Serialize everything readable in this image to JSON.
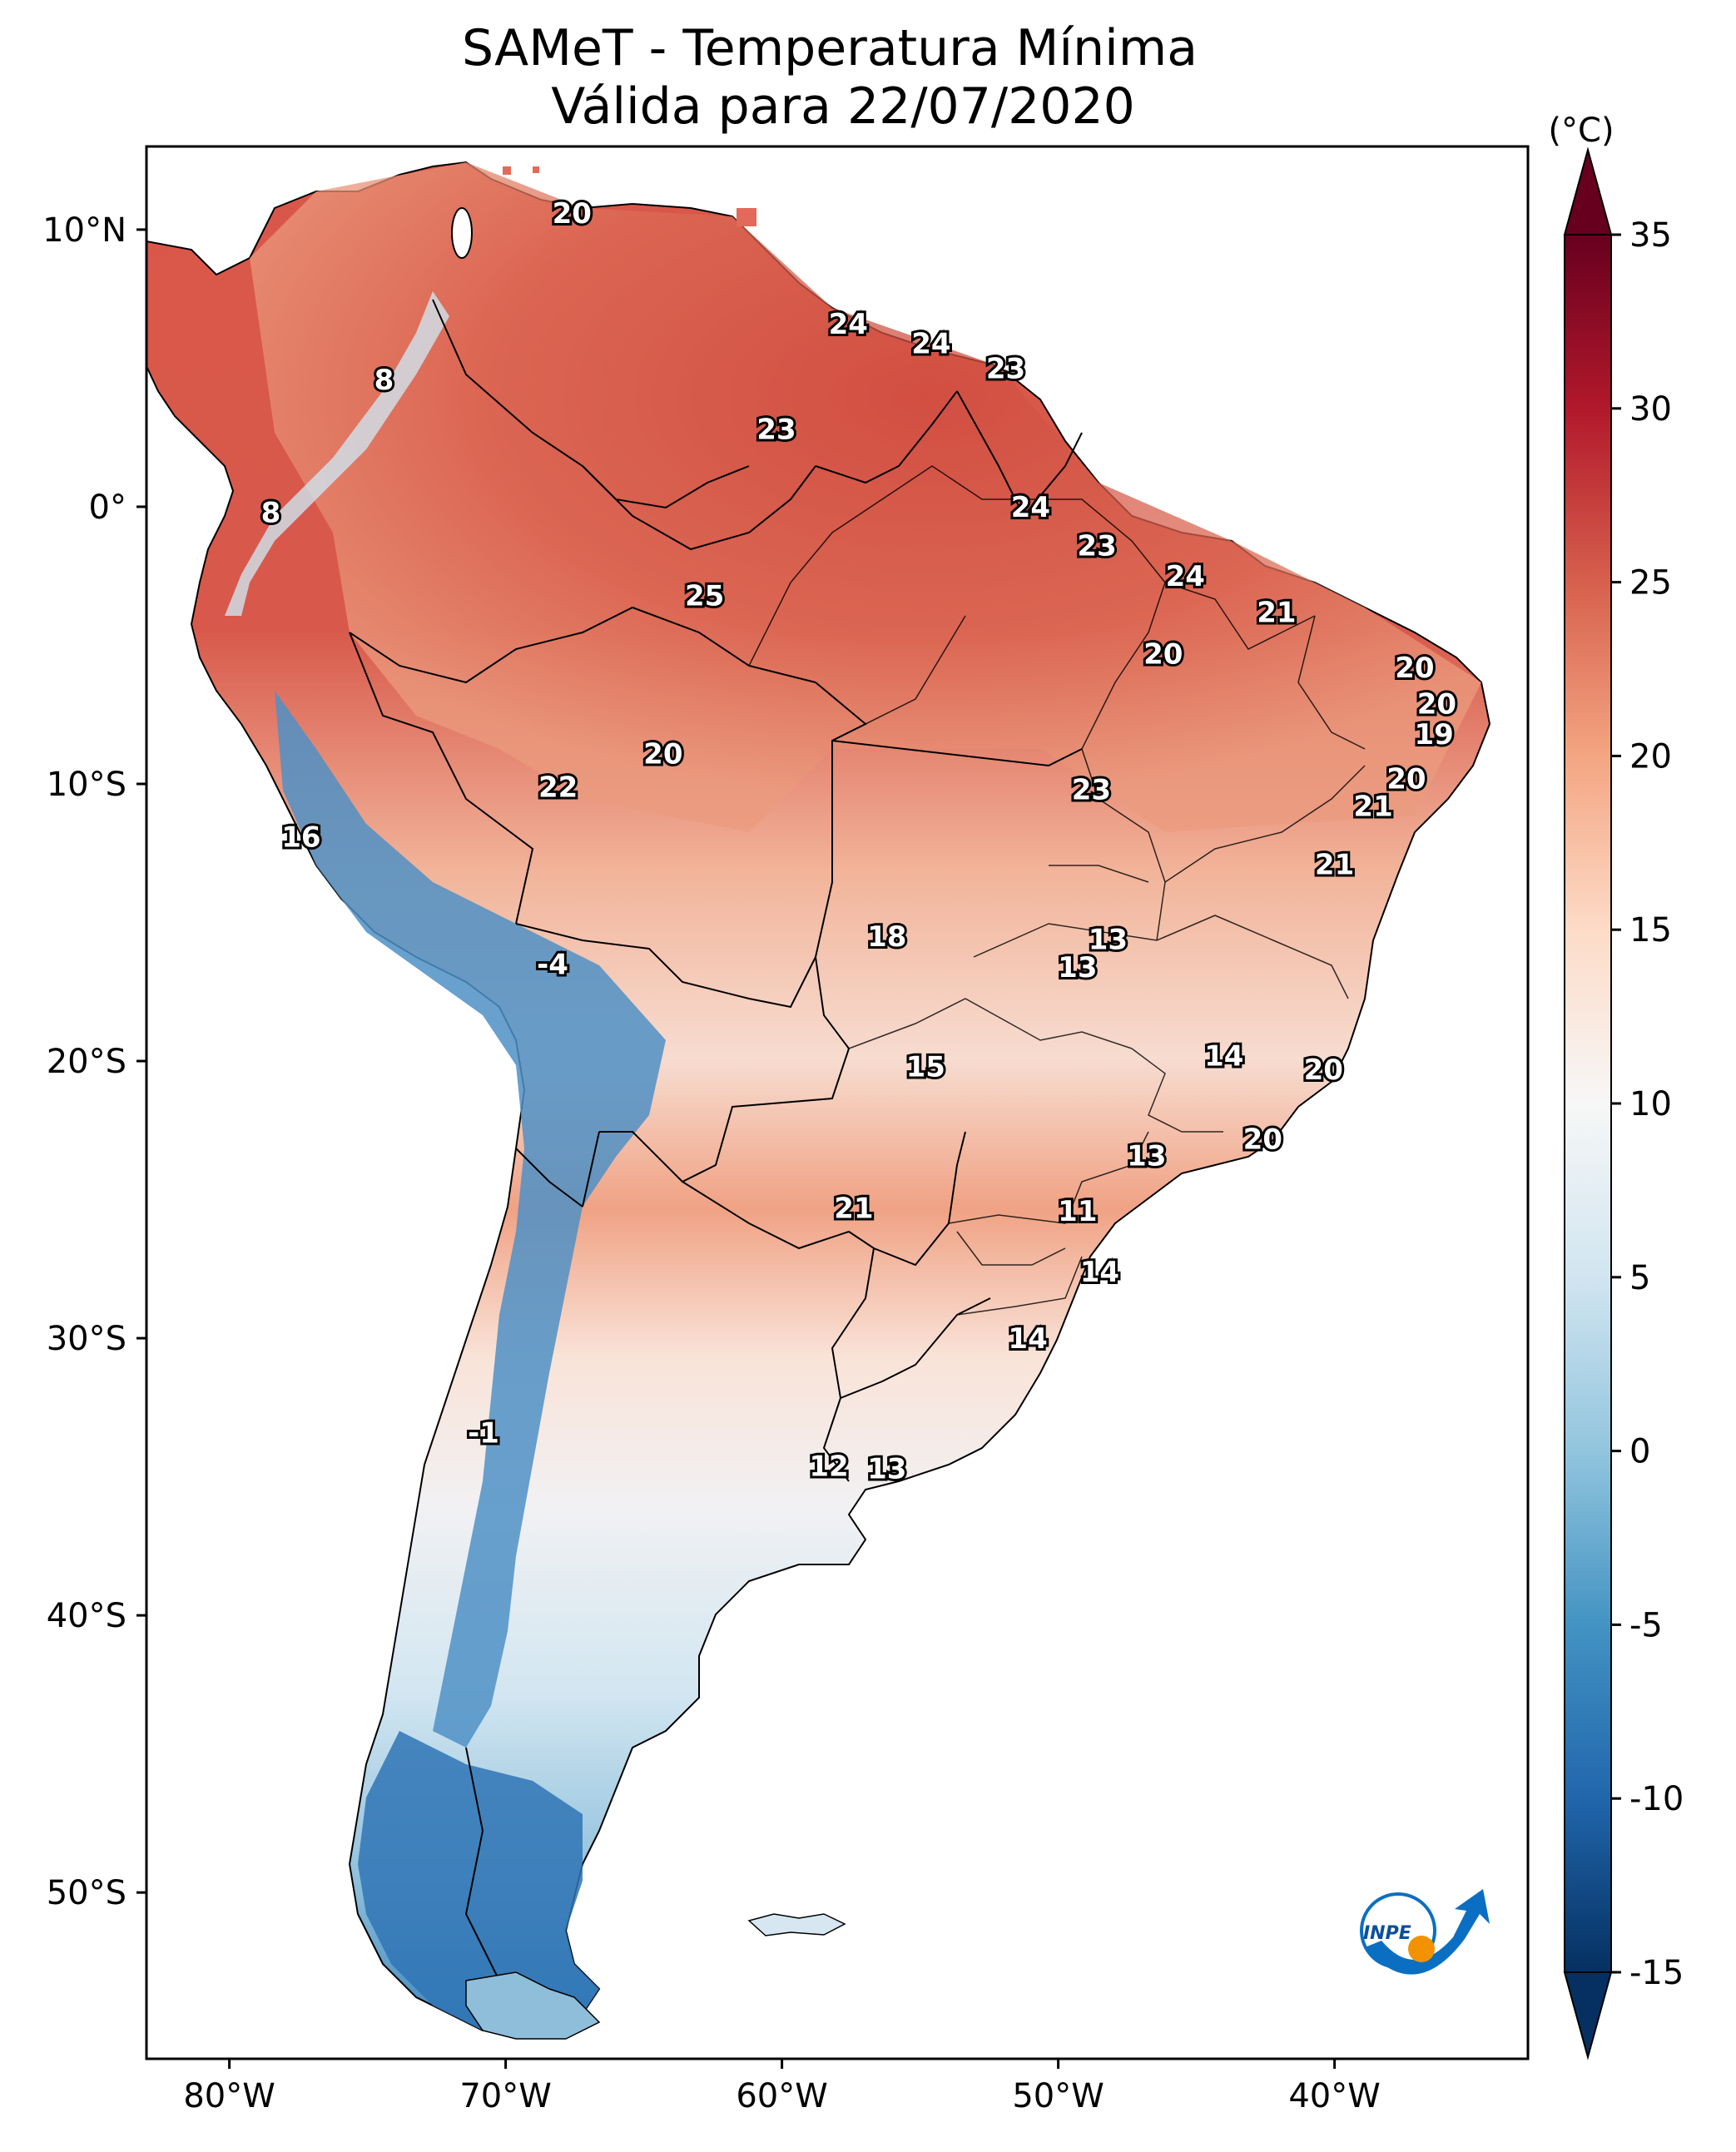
{
  "title_line1": "SAMeT - Temperatura Mínima",
  "title_line2": "Válida para 22/07/2020",
  "colorbar": {
    "unit_label": "(°C)",
    "min": -15,
    "max": 35,
    "ticks": [
      "35",
      "30",
      "25",
      "20",
      "15",
      "10",
      "5",
      "0",
      "-5",
      "-10",
      "-15"
    ],
    "tick_values": [
      35,
      30,
      25,
      20,
      15,
      10,
      5,
      0,
      -5,
      -10,
      -15
    ]
  },
  "axes": {
    "lat_labels": [
      "10°N",
      "0°",
      "10°S",
      "20°S",
      "30°S",
      "40°S",
      "50°S"
    ],
    "lat_values": [
      10,
      0,
      -10,
      -20,
      -30,
      -40,
      -50
    ],
    "lon_labels": [
      "80°W",
      "70°W",
      "60°W",
      "50°W",
      "40°W"
    ],
    "lon_values": [
      -80,
      -70,
      -60,
      -50,
      -40
    ],
    "lon_range": [
      -83,
      -33
    ],
    "lat_range": [
      -56,
      13
    ]
  },
  "station_labels": [
    {
      "text": "20",
      "lon": -67.6,
      "lat": 10.6
    },
    {
      "text": "8",
      "lon": -74.4,
      "lat": 4.6
    },
    {
      "text": "8",
      "lon": -78.5,
      "lat": -0.2
    },
    {
      "text": "24",
      "lon": -57.6,
      "lat": 6.6
    },
    {
      "text": "24",
      "lon": -54.6,
      "lat": 5.9
    },
    {
      "text": "23",
      "lon": -51.9,
      "lat": 5.0
    },
    {
      "text": "23",
      "lon": -60.2,
      "lat": 2.8
    },
    {
      "text": "24",
      "lon": -51.0,
      "lat": 0.0
    },
    {
      "text": "23",
      "lon": -48.6,
      "lat": -1.4
    },
    {
      "text": "24",
      "lon": -45.4,
      "lat": -2.5
    },
    {
      "text": "25",
      "lon": -62.8,
      "lat": -3.2
    },
    {
      "text": "21",
      "lon": -42.1,
      "lat": -3.8
    },
    {
      "text": "20",
      "lon": -46.2,
      "lat": -5.3
    },
    {
      "text": "20",
      "lon": -37.1,
      "lat": -5.8
    },
    {
      "text": "20",
      "lon": -36.3,
      "lat": -7.1
    },
    {
      "text": "19",
      "lon": -36.4,
      "lat": -8.2
    },
    {
      "text": "20",
      "lon": -64.3,
      "lat": -8.9
    },
    {
      "text": "20",
      "lon": -37.4,
      "lat": -9.8
    },
    {
      "text": "22",
      "lon": -68.1,
      "lat": -10.1
    },
    {
      "text": "23",
      "lon": -48.8,
      "lat": -10.2
    },
    {
      "text": "21",
      "lon": -38.6,
      "lat": -10.8
    },
    {
      "text": "16",
      "lon": -77.4,
      "lat": -11.9
    },
    {
      "text": "21",
      "lon": -40.0,
      "lat": -12.9
    },
    {
      "text": "18",
      "lon": -56.2,
      "lat": -15.5
    },
    {
      "text": "13",
      "lon": -48.2,
      "lat": -15.6
    },
    {
      "text": "13",
      "lon": -49.3,
      "lat": -16.6
    },
    {
      "text": "-4",
      "lon": -68.3,
      "lat": -16.5
    },
    {
      "text": "14",
      "lon": -44.0,
      "lat": -19.8
    },
    {
      "text": "15",
      "lon": -54.8,
      "lat": -20.2
    },
    {
      "text": "20",
      "lon": -40.4,
      "lat": -20.3
    },
    {
      "text": "20",
      "lon": -42.6,
      "lat": -22.8
    },
    {
      "text": "13",
      "lon": -46.8,
      "lat": -23.4
    },
    {
      "text": "21",
      "lon": -57.4,
      "lat": -25.3
    },
    {
      "text": "11",
      "lon": -49.3,
      "lat": -25.4
    },
    {
      "text": "14",
      "lon": -48.5,
      "lat": -27.6
    },
    {
      "text": "14",
      "lon": -51.1,
      "lat": -30.0
    },
    {
      "text": "-1",
      "lon": -70.8,
      "lat": -33.4
    },
    {
      "text": "12",
      "lon": -58.3,
      "lat": -34.6
    },
    {
      "text": "13",
      "lon": -56.2,
      "lat": -34.7
    }
  ],
  "logo": {
    "text": "INPE"
  },
  "colors": {
    "scale": [
      "#67001f",
      "#b2182b",
      "#d6604d",
      "#f4a582",
      "#fddbc7",
      "#f7f7f7",
      "#d1e5f0",
      "#92c5de",
      "#4393c3",
      "#2166ac",
      "#053061"
    ],
    "logo_blue": "#0a6fc2",
    "logo_orange": "#f39200"
  }
}
